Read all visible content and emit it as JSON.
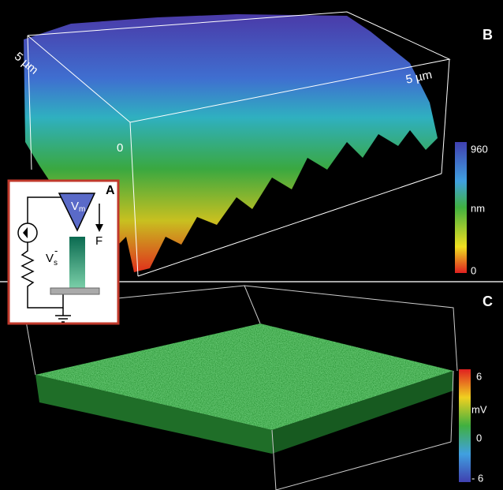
{
  "panel_b": {
    "label": "B",
    "axis_labels": [
      "5 µm",
      "5 µm",
      "0"
    ],
    "colorbar": {
      "max": "960",
      "unit": "nm",
      "min": "0"
    }
  },
  "panel_a": {
    "label": "A",
    "potential": "V",
    "potential_sub": "m",
    "force": "F",
    "sample": "V",
    "sample_sub": "s",
    "sample_sup": "-"
  },
  "panel_c": {
    "label": "C",
    "colorbar": {
      "max": "6",
      "unit": "mV",
      "mid": "0",
      "min": "- 6"
    }
  }
}
